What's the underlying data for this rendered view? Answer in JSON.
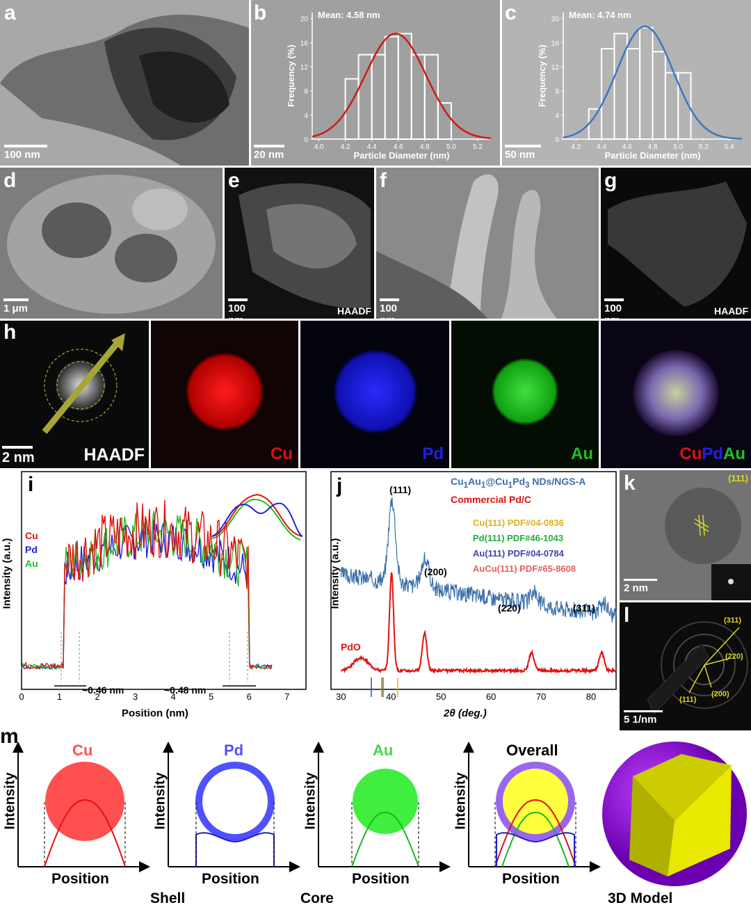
{
  "panels": {
    "a": {
      "label": "a",
      "scale": "100 nm"
    },
    "b": {
      "label": "b",
      "scale": "20 nm",
      "mean": "Mean: 4.58 nm",
      "ylabel": "Frequency (%)",
      "xlabel": "Particle Diameter (nm)",
      "xticks": [
        "4.0",
        "4.2",
        "4.4",
        "4.6",
        "4.8",
        "5.0",
        "5.2"
      ],
      "yticks": [
        "0",
        "4",
        "8",
        "12",
        "16",
        "20"
      ]
    },
    "c": {
      "label": "c",
      "scale": "50 nm",
      "mean": "Mean: 4.74 nm",
      "ylabel": "Frequency (%)",
      "xlabel": "Particle Diameter (nm)",
      "xticks": [
        "4.2",
        "4.4",
        "4.6",
        "4.8",
        "5.0",
        "5.2",
        "5.4"
      ],
      "yticks": [
        "0",
        "4",
        "8",
        "12",
        "16",
        "20"
      ]
    },
    "d": {
      "label": "d",
      "scale": "1 μm"
    },
    "e": {
      "label": "e",
      "scale": "100 nm",
      "mode": "HAADF"
    },
    "f": {
      "label": "f",
      "scale": "100 nm"
    },
    "g": {
      "label": "g",
      "scale": "100 nm",
      "mode": "HAADF"
    },
    "h": {
      "label": "h",
      "scale": "2 nm",
      "maps": [
        "HAADF",
        "Cu",
        "Pd",
        "Au"
      ],
      "overlay": [
        "Cu",
        "Pd",
        "Au"
      ]
    },
    "i": {
      "label": "i",
      "ylabel": "Intensity (a.u.)",
      "xlabel": "Position (nm)",
      "legend": [
        "Cu",
        "Pd",
        "Au"
      ],
      "ann1": "~0.46 nm",
      "ann2": "~0.48 nm",
      "xticks": [
        "0",
        "1",
        "2",
        "3",
        "4",
        "5",
        "6",
        "7"
      ]
    },
    "j": {
      "label": "j",
      "ylabel": "Intensity (a.u.)",
      "xlabel": "2θ (deg.)",
      "peaks": [
        "(111)",
        "(200)",
        "(220)",
        "(311)"
      ],
      "legend1": "Cu1Au1@Cu1Pd3 NDs/NGS-A",
      "legend2": "Commercial Pd/C",
      "refs": [
        "Cu(111) PDF#04-0836",
        "Pd(111) PDF#46-1043",
        "Au(111) PDF#04-0784",
        "AuCu(111) PDF#65-8608"
      ],
      "pdo": "PdO",
      "xticks": [
        "30",
        "40",
        "50",
        "60",
        "70",
        "80"
      ]
    },
    "k": {
      "label": "k",
      "scale": "2 nm",
      "plane": "(111)"
    },
    "l": {
      "label": "l",
      "scale": "5 1/nm",
      "planes": [
        "(311)",
        "(220)",
        "(200)",
        "(111)"
      ]
    },
    "m": {
      "label": "m",
      "titles": [
        "Cu",
        "Pd",
        "Au",
        "Overall"
      ],
      "ylabel": "Intensity",
      "xlabel": "Position",
      "captions": [
        "Shell",
        "Core",
        "3D Model"
      ]
    }
  },
  "chart_data": [
    {
      "type": "bar",
      "panel": "b",
      "title": "",
      "xlabel": "Particle Diameter (nm)",
      "ylabel": "Frequency (%)",
      "categories": [
        "4.25",
        "4.35",
        "4.45",
        "4.55",
        "4.65",
        "4.75",
        "4.85",
        "4.95"
      ],
      "values": [
        10,
        14,
        14,
        17,
        17.5,
        14,
        14,
        6
      ],
      "ylim": [
        0,
        21
      ],
      "xlim": [
        3.95,
        5.3
      ],
      "fit": {
        "mean": 4.58,
        "peak": 17.5,
        "sigma": 0.23
      }
    },
    {
      "type": "bar",
      "panel": "c",
      "title": "",
      "xlabel": "Particle Diameter (nm)",
      "ylabel": "Frequency (%)",
      "categories": [
        "4.35",
        "4.45",
        "4.55",
        "4.65",
        "4.75",
        "4.85",
        "4.95",
        "5.05"
      ],
      "values": [
        5,
        15,
        17.5,
        15,
        18.5,
        14.5,
        11,
        11
      ],
      "ylim": [
        0,
        21
      ],
      "xlim": [
        4.1,
        5.5
      ],
      "fit": {
        "mean": 4.74,
        "peak": 18.7,
        "sigma": 0.22
      }
    }
  ]
}
